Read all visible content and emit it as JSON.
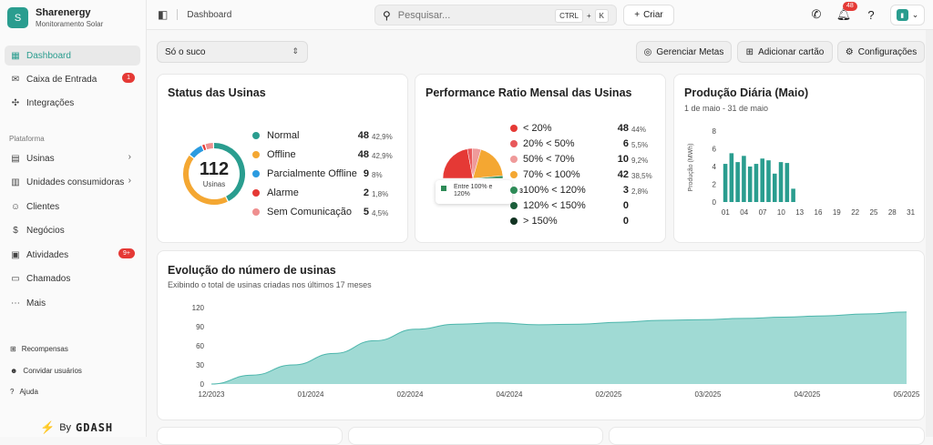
{
  "brand": {
    "initial": "S",
    "name": "Sharenergy",
    "subtitle": "Monitoramento Solar"
  },
  "sidebar": {
    "items": [
      {
        "label": "Dashboard",
        "icon": "dashboard-icon"
      },
      {
        "label": "Caixa de Entrada",
        "icon": "inbox-icon",
        "badge": "1"
      },
      {
        "label": "Integrações",
        "icon": "puzzle-icon"
      }
    ],
    "section_label": "Plataforma",
    "platform_items": [
      {
        "label": "Usinas",
        "icon": "solar-panel-icon"
      },
      {
        "label": "Unidades consumidoras",
        "icon": "building-icon"
      },
      {
        "label": "Clientes",
        "icon": "users-icon"
      },
      {
        "label": "Negócios",
        "icon": "dollar-icon"
      },
      {
        "label": "Atividades",
        "icon": "calendar-icon",
        "badge": "9+"
      },
      {
        "label": "Chamados",
        "icon": "ticket-icon"
      },
      {
        "label": "Mais",
        "icon": "more-icon"
      }
    ],
    "bottom_items": [
      {
        "label": "Recompensas",
        "icon": "gift-icon"
      },
      {
        "label": "Convidar usuários",
        "icon": "user-plus-icon"
      },
      {
        "label": "Ajuda",
        "icon": "help-icon"
      }
    ],
    "powered_by": "By",
    "powered_brand": "GDASH"
  },
  "topbar": {
    "breadcrumb": "Dashboard",
    "search_placeholder": "Pesquisar...",
    "shortcut": [
      "CTRL",
      "+",
      "K"
    ],
    "create_label": "Criar",
    "notifications": "48"
  },
  "toolbar": {
    "filter_value": "Só o suco",
    "manage_goals": "Gerenciar Metas",
    "add_card": "Adicionar cartão",
    "settings": "Configurações"
  },
  "status": {
    "title": "Status das Usinas",
    "total": "112",
    "total_label": "Usinas",
    "rows": [
      {
        "label": "Normal",
        "value": "48",
        "pct": "42,9%",
        "color": "#2a9d8f"
      },
      {
        "label": "Offline",
        "value": "48",
        "pct": "42,9%",
        "color": "#f4a732"
      },
      {
        "label": "Parcialmente Offline",
        "value": "9",
        "pct": "8%",
        "color": "#2b9be0"
      },
      {
        "label": "Alarme",
        "value": "2",
        "pct": "1,8%",
        "color": "#e53935"
      },
      {
        "label": "Sem Comunicação",
        "value": "5",
        "pct": "4,5%",
        "color": "#ef8f8f"
      }
    ]
  },
  "performance": {
    "title": "Performance Ratio Mensal das Usinas",
    "tooltip_label": "Entre 100% e 120%",
    "tooltip_value": "3",
    "rows": [
      {
        "label": "< 20%",
        "value": "48",
        "pct": "44%",
        "color": "#e53935"
      },
      {
        "label": "20% < 50%",
        "value": "6",
        "pct": "5,5%",
        "color": "#e8585a"
      },
      {
        "label": "50% < 70%",
        "value": "10",
        "pct": "9,2%",
        "color": "#ef9a9a"
      },
      {
        "label": "70% < 100%",
        "value": "42",
        "pct": "38,5%",
        "color": "#f4a732"
      },
      {
        "label": "100% < 120%",
        "value": "3",
        "pct": "2,8%",
        "color": "#2e8b57"
      },
      {
        "label": "120% < 150%",
        "value": "0",
        "pct": "",
        "color": "#1b5e3a"
      },
      {
        "label": "> 150%",
        "value": "0",
        "pct": "",
        "color": "#123322"
      }
    ]
  },
  "daily": {
    "title": "Produção Diária (Maio)",
    "subtitle": "1 de maio - 31 de maio",
    "ylabel": "Produção (MWh)",
    "yticks": [
      "8",
      "6",
      "4",
      "2",
      "0"
    ],
    "xticks": [
      "01",
      "04",
      "07",
      "10",
      "13",
      "16",
      "19",
      "22",
      "25",
      "28",
      "31"
    ],
    "ymax": 8,
    "values": [
      4.3,
      5.5,
      4.5,
      5.2,
      4.0,
      4.3,
      4.9,
      4.7,
      3.2,
      4.5,
      4.4,
      1.5
    ],
    "color": "#2a9d8f"
  },
  "evolution": {
    "title": "Evolução do número de usinas",
    "subtitle": "Exibindo o total de usinas criadas nos últimos 17 meses",
    "yticks": [
      "120",
      "90",
      "60",
      "30",
      "0"
    ],
    "xticks": [
      "12/2023",
      "01/2024",
      "02/2024",
      "04/2024",
      "02/2025",
      "03/2025",
      "04/2025",
      "05/2025"
    ],
    "ymax": 120,
    "values": [
      0,
      14,
      30,
      48,
      68,
      86,
      94,
      96,
      93,
      94,
      97,
      100,
      101,
      103,
      105,
      107,
      110,
      113
    ],
    "color": "#8fd3cc"
  }
}
